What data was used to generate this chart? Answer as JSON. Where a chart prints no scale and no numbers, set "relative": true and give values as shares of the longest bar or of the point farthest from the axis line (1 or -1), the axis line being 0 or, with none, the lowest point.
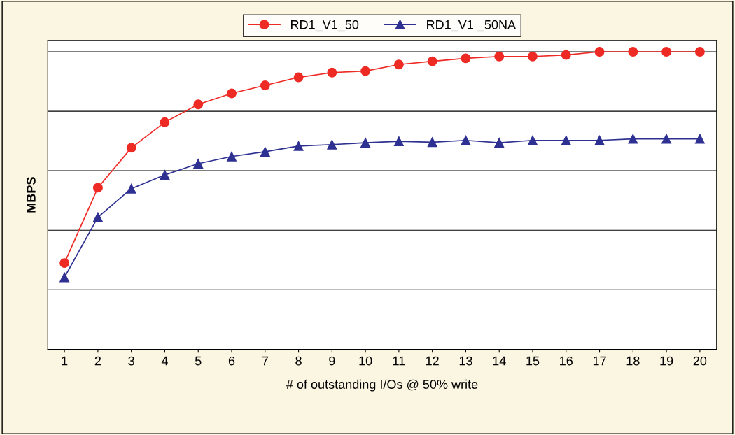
{
  "chart_data": {
    "type": "line",
    "relative": true,
    "xlabel": "# of outstanding I/Os @ 50% write",
    "ylabel": "MBPS",
    "categories": [
      "1",
      "2",
      "3",
      "4",
      "5",
      "6",
      "7",
      "8",
      "9",
      "10",
      "11",
      "12",
      "13",
      "14",
      "15",
      "16",
      "17",
      "18",
      "19",
      "20"
    ],
    "series": [
      {
        "name": "RD1_V1_50",
        "color": "#ee2a24",
        "marker": "circle",
        "values": [
          0.29,
          0.543,
          0.677,
          0.763,
          0.823,
          0.86,
          0.887,
          0.914,
          0.93,
          0.935,
          0.957,
          0.968,
          0.978,
          0.984,
          0.984,
          0.989,
          1,
          1,
          1,
          1
        ]
      },
      {
        "name": "RD1_V1 _50NA",
        "color": "#2e3192",
        "marker": "triangle",
        "values": [
          0.242,
          0.444,
          0.54,
          0.586,
          0.624,
          0.648,
          0.664,
          0.683,
          0.688,
          0.694,
          0.699,
          0.696,
          0.702,
          0.694,
          0.702,
          0.702,
          0.702,
          0.707,
          0.707,
          0.707
        ]
      }
    ],
    "grid": "y",
    "legend": "top",
    "line_style": "solid"
  }
}
